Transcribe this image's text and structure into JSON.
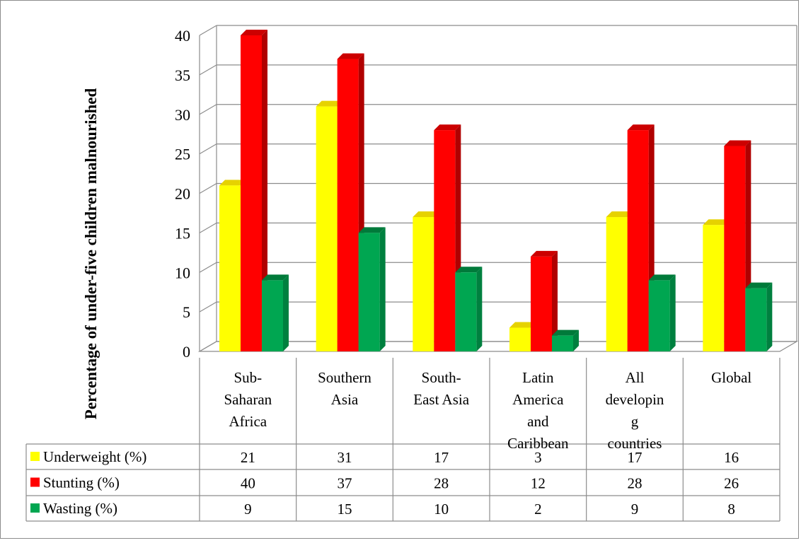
{
  "chart_data": {
    "type": "bar",
    "title": "",
    "xlabel": "",
    "ylabel": "Percentage of under-five children malnourished",
    "ylim": [
      0,
      40
    ],
    "yticks": [
      0,
      5,
      10,
      15,
      20,
      25,
      30,
      35,
      40
    ],
    "grid": true,
    "legend": "data-table-left",
    "categories": [
      "Sub-Saharan Africa",
      "Southern Asia",
      "South-East Asia",
      "Latin America and Caribbean",
      "All developing countries",
      "Global"
    ],
    "category_lines": [
      [
        "Sub-",
        "Saharan",
        "Africa"
      ],
      [
        "Southern",
        "Asia"
      ],
      [
        "South-",
        "East Asia"
      ],
      [
        "Latin",
        "America",
        "and",
        "Caribbean"
      ],
      [
        "All",
        "developin",
        "g",
        "countries"
      ],
      [
        "Global"
      ]
    ],
    "series": [
      {
        "name": "Underweight (%)",
        "values": [
          21,
          31,
          17,
          3,
          17,
          16
        ],
        "color": "#ffff00",
        "top_color": "#e6d200",
        "side_color": "#c8c800"
      },
      {
        "name": "Stunting (%)",
        "values": [
          40,
          37,
          28,
          12,
          28,
          26
        ],
        "color": "#ff0000",
        "top_color": "#cc0000",
        "side_color": "#b00000"
      },
      {
        "name": "Wasting (%)",
        "values": [
          9,
          15,
          10,
          2,
          9,
          8
        ],
        "color": "#00a651",
        "top_color": "#007a3a",
        "side_color": "#00803f"
      }
    ]
  }
}
